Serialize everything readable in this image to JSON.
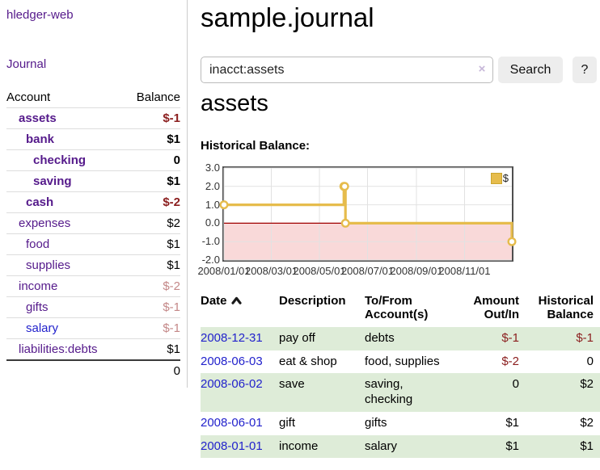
{
  "brand": "hledger-web",
  "sidebar": {
    "journal_link": "Journal",
    "accounts": {
      "header_account": "Account",
      "header_balance": "Balance",
      "rows": [
        {
          "name": "assets",
          "depth": 1,
          "bold": true,
          "balance": "$-1",
          "balance_style": "neg",
          "link_style": "purple"
        },
        {
          "name": "bank",
          "depth": 2,
          "bold": true,
          "balance": "$1",
          "balance_style": "normal",
          "link_style": "purple"
        },
        {
          "name": "checking",
          "depth": 3,
          "bold": true,
          "balance": "0",
          "balance_style": "normal",
          "link_style": "purple"
        },
        {
          "name": "saving",
          "depth": 3,
          "bold": true,
          "balance": "$1",
          "balance_style": "normal",
          "link_style": "purple"
        },
        {
          "name": "cash",
          "depth": 2,
          "bold": true,
          "balance": "$-2",
          "balance_style": "neg",
          "link_style": "purple"
        },
        {
          "name": "expenses",
          "depth": 1,
          "bold": false,
          "balance": "$2",
          "balance_style": "normal",
          "link_style": "purple"
        },
        {
          "name": "food",
          "depth": 2,
          "bold": false,
          "balance": "$1",
          "balance_style": "normal",
          "link_style": "purple"
        },
        {
          "name": "supplies",
          "depth": 2,
          "bold": false,
          "balance": "$1",
          "balance_style": "normal",
          "link_style": "purple"
        },
        {
          "name": "income",
          "depth": 1,
          "bold": false,
          "balance": "$-2",
          "balance_style": "negdim",
          "link_style": "purple"
        },
        {
          "name": "gifts",
          "depth": 2,
          "bold": false,
          "balance": "$-1",
          "balance_style": "negdim",
          "link_style": "purple"
        },
        {
          "name": "salary",
          "depth": 2,
          "bold": false,
          "balance": "$-1",
          "balance_style": "negdim",
          "link_style": "blue"
        },
        {
          "name": "liabilities:debts",
          "depth": 1,
          "bold": false,
          "balance": "$1",
          "balance_style": "normal",
          "link_style": "purple"
        }
      ],
      "total": "0"
    }
  },
  "header": {
    "title": "sample.journal"
  },
  "search": {
    "value": "inacct:assets",
    "clear_icon": "×",
    "button_label": "Search",
    "help_label": "?"
  },
  "account_page": {
    "heading": "assets",
    "chart_title": "Historical Balance:"
  },
  "chart_data": {
    "type": "line",
    "step": true,
    "title": "Historical Balance:",
    "series": [
      {
        "name": "$",
        "color": "#e6bc4c",
        "points": [
          {
            "date": "2008-01-01",
            "value": 1.0
          },
          {
            "date": "2008-06-01",
            "value": 2.0
          },
          {
            "date": "2008-06-02",
            "value": 2.0
          },
          {
            "date": "2008-06-03",
            "value": 0.0
          },
          {
            "date": "2008-12-31",
            "value": -1.0
          }
        ]
      }
    ],
    "x_start": "2008-01-01",
    "x_end": "2008-12-31",
    "ylim": [
      -2.0,
      3.0
    ],
    "yticks": [
      {
        "v": 3.0,
        "label": "3.0"
      },
      {
        "v": 2.0,
        "label": "2.0"
      },
      {
        "v": 1.0,
        "label": "1.0"
      },
      {
        "v": 0.0,
        "label": "0.0"
      },
      {
        "v": -1.0,
        "label": "-1.0"
      },
      {
        "v": -2.0,
        "label": "-2.0"
      }
    ],
    "xticks": [
      {
        "date": "2008-01-01",
        "label": "2008/01/01"
      },
      {
        "date": "2008-03-01",
        "label": "2008/03/01"
      },
      {
        "date": "2008-05-01",
        "label": "2008/05/01"
      },
      {
        "date": "2008-07-01",
        "label": "2008/07/01"
      },
      {
        "date": "2008-09-01",
        "label": "2008/09/01"
      },
      {
        "date": "2008-11-01",
        "label": "2008/11/01"
      }
    ],
    "grid": true,
    "negative_region_color": "#f9d9d9",
    "zero_line_color": "#a00000",
    "legend": {
      "label": "$",
      "position": "top-right"
    }
  },
  "register": {
    "headers": {
      "date": "Date",
      "description": "Description",
      "accounts_line1": "To/From",
      "accounts_line2": "Account(s)",
      "amount_line1": "Amount",
      "amount_line2": "Out/In",
      "balance_line1": "Historical",
      "balance_line2": "Balance"
    },
    "rows": [
      {
        "date": "2008-12-31",
        "description": "pay off",
        "accounts": [
          "debts"
        ],
        "amount": "$-1",
        "amount_style": "neg",
        "balance": "$-1",
        "balance_style": "neg",
        "shaded": true
      },
      {
        "date": "2008-06-03",
        "description": "eat & shop",
        "accounts": [
          "food, supplies"
        ],
        "amount": "$-2",
        "amount_style": "neg",
        "balance": "0",
        "balance_style": "normal",
        "shaded": false
      },
      {
        "date": "2008-06-02",
        "description": "save",
        "accounts": [
          "saving,",
          "checking"
        ],
        "amount": "0",
        "amount_style": "normal",
        "balance": "$2",
        "balance_style": "normal",
        "shaded": true
      },
      {
        "date": "2008-06-01",
        "description": "gift",
        "accounts": [
          "gifts"
        ],
        "amount": "$1",
        "amount_style": "normal",
        "balance": "$2",
        "balance_style": "normal",
        "shaded": false
      },
      {
        "date": "2008-01-01",
        "description": "income",
        "accounts": [
          "salary"
        ],
        "amount": "$1",
        "amount_style": "normal",
        "balance": "$1",
        "balance_style": "normal",
        "shaded": true
      }
    ]
  }
}
